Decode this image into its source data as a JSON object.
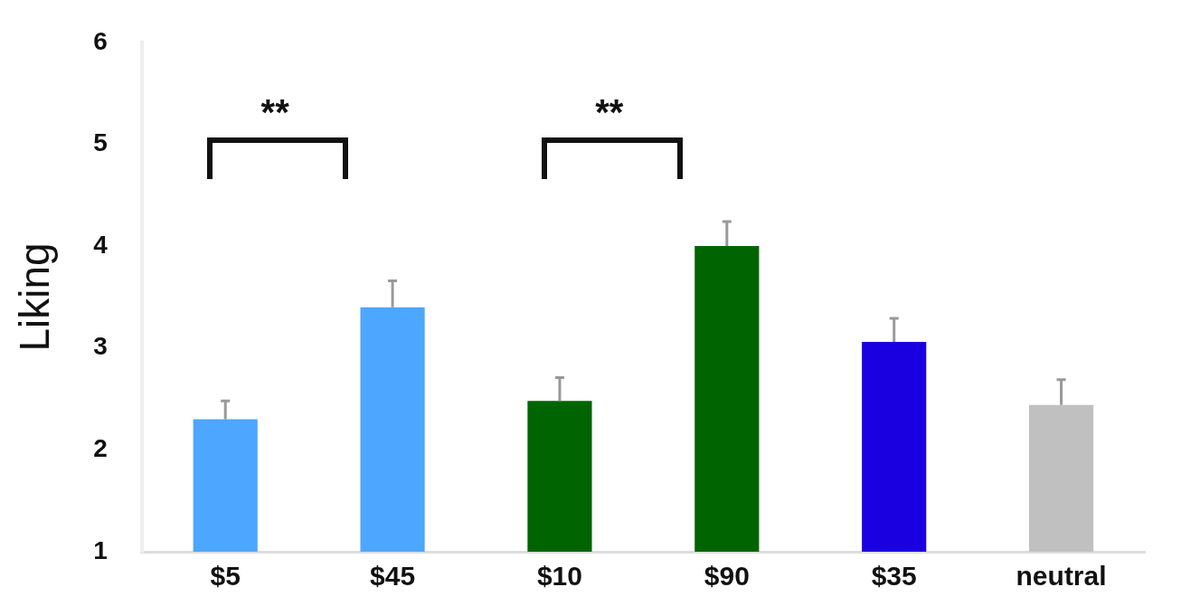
{
  "chart_data": {
    "type": "bar",
    "ylabel": "Liking",
    "categories": [
      "$5",
      "$45",
      "$10",
      "$90",
      "$35",
      "neutral"
    ],
    "values": [
      2.3,
      3.4,
      2.48,
      4.0,
      3.06,
      2.44
    ],
    "colors": [
      "#4da6ff",
      "#4da6ff",
      "#006400",
      "#006400",
      "#1a00e0",
      "#c0c0c0"
    ],
    "errors": [
      [
        2.3,
        2.48
      ],
      [
        3.4,
        3.66
      ],
      [
        2.48,
        2.71
      ],
      [
        4.0,
        4.24
      ],
      [
        3.06,
        3.29
      ],
      [
        2.44,
        2.69
      ]
    ],
    "ylim": [
      1,
      6
    ],
    "yticks": [
      1,
      2,
      3,
      4,
      5,
      6
    ],
    "annotations": [
      "**",
      "**"
    ]
  }
}
